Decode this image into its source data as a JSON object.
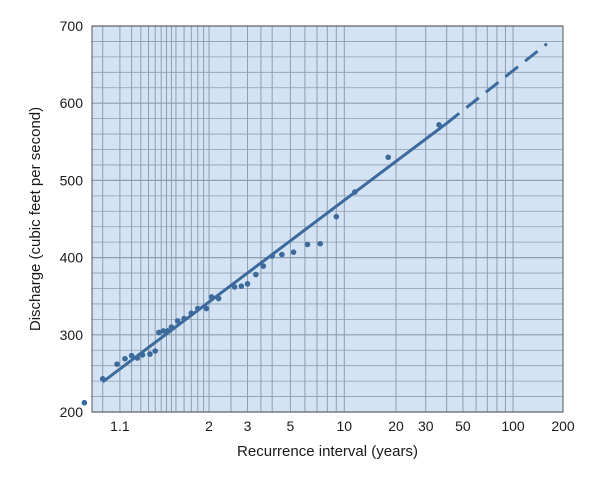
{
  "chart_data": {
    "type": "scatter",
    "title": "",
    "xlabel": "Recurrence interval (years)",
    "ylabel": "Discharge (cubic feet per second)",
    "x_scale": "probability (Gumbel) scale of recurrence interval",
    "xlim": [
      1.03,
      200
    ],
    "ylim": [
      200,
      700
    ],
    "x_tick_labels": [
      "1.1",
      "2",
      "3",
      "5",
      "10",
      "20",
      "30",
      "50",
      "100",
      "200"
    ],
    "x_minor_grid": [
      1.05,
      1.1,
      1.15,
      1.2,
      1.25,
      1.3,
      1.35,
      1.4,
      1.45,
      1.5,
      1.6,
      1.7,
      1.8,
      1.9,
      2,
      2.5,
      3,
      3.5,
      4,
      5,
      6,
      7,
      8,
      9,
      10,
      20,
      30,
      40,
      50,
      60,
      70,
      80,
      90,
      100,
      200
    ],
    "y_ticks": [
      200,
      300,
      400,
      500,
      600,
      700
    ],
    "grid": true,
    "background_color": "#d4e3f3",
    "grid_color": "#8e9db0",
    "series_color": "#3c6a9c",
    "points": [
      {
        "x": 1.02,
        "y": 212
      },
      {
        "x": 1.05,
        "y": 243
      },
      {
        "x": 1.09,
        "y": 262
      },
      {
        "x": 1.12,
        "y": 269
      },
      {
        "x": 1.15,
        "y": 273
      },
      {
        "x": 1.18,
        "y": 270
      },
      {
        "x": 1.21,
        "y": 274
      },
      {
        "x": 1.26,
        "y": 275
      },
      {
        "x": 1.3,
        "y": 279
      },
      {
        "x": 1.33,
        "y": 303
      },
      {
        "x": 1.37,
        "y": 305
      },
      {
        "x": 1.41,
        "y": 305
      },
      {
        "x": 1.45,
        "y": 310
      },
      {
        "x": 1.52,
        "y": 318
      },
      {
        "x": 1.6,
        "y": 321
      },
      {
        "x": 1.7,
        "y": 328
      },
      {
        "x": 1.8,
        "y": 334
      },
      {
        "x": 1.95,
        "y": 334
      },
      {
        "x": 2.05,
        "y": 349
      },
      {
        "x": 2.2,
        "y": 347
      },
      {
        "x": 2.6,
        "y": 362
      },
      {
        "x": 2.8,
        "y": 363
      },
      {
        "x": 3.0,
        "y": 366
      },
      {
        "x": 3.3,
        "y": 378
      },
      {
        "x": 3.6,
        "y": 389
      },
      {
        "x": 4.0,
        "y": 402
      },
      {
        "x": 4.5,
        "y": 404
      },
      {
        "x": 5.2,
        "y": 407
      },
      {
        "x": 6.2,
        "y": 417
      },
      {
        "x": 7.3,
        "y": 418
      },
      {
        "x": 9.0,
        "y": 453
      },
      {
        "x": 11.5,
        "y": 485
      },
      {
        "x": 18.0,
        "y": 530
      },
      {
        "x": 36.0,
        "y": 572
      }
    ],
    "fit_line": {
      "x_start": 1.05,
      "y_start": 239,
      "x_end": 40,
      "y_end": 574,
      "style": "solid"
    },
    "extrapolation": {
      "x_start": 40,
      "y_start": 574,
      "x_end": 160,
      "y_end": 677,
      "style": "dashed"
    }
  }
}
